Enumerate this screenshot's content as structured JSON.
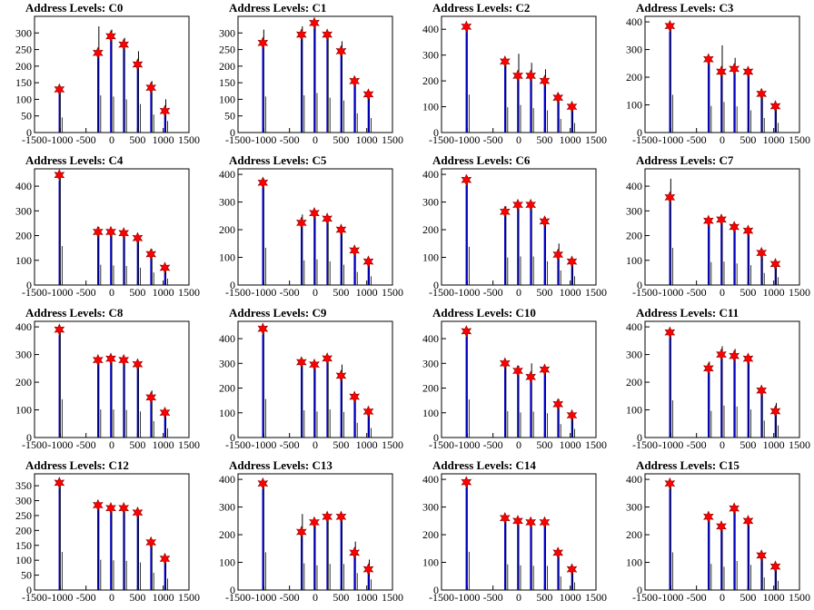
{
  "chart_data": [
    {
      "type": "bar",
      "title": "Address Levels: C0",
      "xlim": [
        -1500,
        1500
      ],
      "ylim": [
        0,
        350
      ],
      "xticks": [
        -1500,
        -1000,
        -500,
        0,
        500,
        1000,
        1500
      ],
      "yticks": [
        0,
        50,
        100,
        150,
        200,
        250,
        300
      ],
      "peaks_x": [
        -1000,
        -250,
        0,
        250,
        520,
        780,
        1050
      ],
      "peak_values": [
        130,
        240,
        290,
        265,
        205,
        135,
        65
      ],
      "bar_heights": [
        130,
        320,
        310,
        285,
        245,
        155,
        100
      ]
    },
    {
      "type": "bar",
      "title": "Address Levels: C1",
      "xlim": [
        -1500,
        1500
      ],
      "ylim": [
        0,
        350
      ],
      "xticks": [
        -1500,
        -1000,
        -500,
        0,
        500,
        1000,
        1500
      ],
      "yticks": [
        0,
        50,
        100,
        150,
        200,
        250,
        300
      ],
      "peaks_x": [
        -1000,
        -250,
        0,
        250,
        520,
        780,
        1050
      ],
      "peak_values": [
        270,
        295,
        330,
        295,
        245,
        155,
        115
      ],
      "bar_heights": [
        310,
        320,
        340,
        300,
        275,
        165,
        125
      ]
    },
    {
      "type": "bar",
      "title": "Address Levels: C2",
      "xlim": [
        -1500,
        1500
      ],
      "ylim": [
        0,
        450
      ],
      "xticks": [
        -1500,
        -1000,
        -500,
        0,
        500,
        1000,
        1500
      ],
      "yticks": [
        0,
        100,
        200,
        300,
        400
      ],
      "peaks_x": [
        -1000,
        -250,
        0,
        250,
        520,
        780,
        1050
      ],
      "peak_values": [
        410,
        275,
        220,
        220,
        200,
        135,
        100
      ],
      "bar_heights": [
        420,
        280,
        305,
        270,
        245,
        150,
        105
      ]
    },
    {
      "type": "bar",
      "title": "Address Levels: C3",
      "xlim": [
        -1500,
        1500
      ],
      "ylim": [
        0,
        420
      ],
      "xticks": [
        -1500,
        -1000,
        -500,
        0,
        500,
        1000,
        1500
      ],
      "yticks": [
        0,
        100,
        200,
        300,
        400
      ],
      "peaks_x": [
        -1000,
        -250,
        0,
        250,
        520,
        780,
        1050
      ],
      "peak_values": [
        385,
        265,
        220,
        230,
        220,
        140,
        95
      ],
      "bar_heights": [
        390,
        275,
        315,
        270,
        230,
        150,
        100
      ]
    },
    {
      "type": "bar",
      "title": "Address Levels: C4",
      "xlim": [
        -1500,
        1500
      ],
      "ylim": [
        0,
        470
      ],
      "xticks": [
        -1500,
        -1000,
        -500,
        0,
        500,
        1000,
        1500
      ],
      "yticks": [
        0,
        100,
        200,
        300,
        400
      ],
      "peaks_x": [
        -1000,
        -250,
        0,
        250,
        520,
        780,
        1050
      ],
      "peak_values": [
        445,
        215,
        215,
        210,
        190,
        125,
        70
      ],
      "bar_heights": [
        450,
        235,
        225,
        220,
        200,
        145,
        75
      ]
    },
    {
      "type": "bar",
      "title": "Address Levels: C5",
      "xlim": [
        -1500,
        1500
      ],
      "ylim": [
        0,
        420
      ],
      "xticks": [
        -1500,
        -1000,
        -500,
        0,
        500,
        1000,
        1500
      ],
      "yticks": [
        0,
        100,
        200,
        300,
        400
      ],
      "peaks_x": [
        -1000,
        -250,
        0,
        250,
        520,
        780,
        1050
      ],
      "peak_values": [
        370,
        225,
        260,
        240,
        200,
        125,
        85
      ],
      "bar_heights": [
        385,
        255,
        265,
        245,
        210,
        135,
        90
      ]
    },
    {
      "type": "bar",
      "title": "Address Levels: C6",
      "xlim": [
        -1500,
        1500
      ],
      "ylim": [
        0,
        420
      ],
      "xticks": [
        -1500,
        -1000,
        -500,
        0,
        500,
        1000,
        1500
      ],
      "yticks": [
        0,
        100,
        200,
        300,
        400
      ],
      "peaks_x": [
        -1000,
        -250,
        0,
        250,
        520,
        780,
        1050
      ],
      "peak_values": [
        380,
        265,
        290,
        290,
        230,
        110,
        85
      ],
      "bar_heights": [
        395,
        285,
        295,
        295,
        245,
        150,
        90
      ]
    },
    {
      "type": "bar",
      "title": "Address Levels: C7",
      "xlim": [
        -1500,
        1500
      ],
      "ylim": [
        0,
        470
      ],
      "xticks": [
        -1500,
        -1000,
        -500,
        0,
        500,
        1000,
        1500
      ],
      "yticks": [
        0,
        100,
        200,
        300,
        400
      ],
      "peaks_x": [
        -1000,
        -250,
        0,
        250,
        520,
        780,
        1050
      ],
      "peak_values": [
        355,
        260,
        265,
        235,
        220,
        130,
        85
      ],
      "bar_heights": [
        430,
        265,
        270,
        250,
        230,
        140,
        90
      ]
    },
    {
      "type": "bar",
      "title": "Address Levels: C8",
      "xlim": [
        -1500,
        1500
      ],
      "ylim": [
        0,
        420
      ],
      "xticks": [
        -1500,
        -1000,
        -500,
        0,
        500,
        1000,
        1500
      ],
      "yticks": [
        0,
        100,
        200,
        300,
        400
      ],
      "peaks_x": [
        -1000,
        -250,
        0,
        250,
        520,
        780,
        1050
      ],
      "peak_values": [
        390,
        280,
        285,
        280,
        265,
        145,
        90
      ],
      "bar_heights": [
        395,
        290,
        290,
        285,
        270,
        170,
        95
      ]
    },
    {
      "type": "bar",
      "title": "Address Levels: C9",
      "xlim": [
        -1500,
        1500
      ],
      "ylim": [
        0,
        470
      ],
      "xticks": [
        -1500,
        -1000,
        -500,
        0,
        500,
        1000,
        1500
      ],
      "yticks": [
        0,
        100,
        200,
        300,
        400
      ],
      "peaks_x": [
        -1000,
        -250,
        0,
        250,
        520,
        780,
        1050
      ],
      "peak_values": [
        440,
        305,
        295,
        320,
        250,
        165,
        105
      ],
      "bar_heights": [
        445,
        315,
        300,
        325,
        295,
        170,
        110
      ]
    },
    {
      "type": "bar",
      "title": "Address Levels: C10",
      "xlim": [
        -1500,
        1500
      ],
      "ylim": [
        0,
        470
      ],
      "xticks": [
        -1500,
        -1000,
        -500,
        0,
        500,
        1000,
        1500
      ],
      "yticks": [
        0,
        100,
        200,
        300,
        400
      ],
      "peaks_x": [
        -1000,
        -250,
        0,
        250,
        520,
        780,
        1050
      ],
      "peak_values": [
        430,
        300,
        270,
        245,
        275,
        135,
        90
      ],
      "bar_heights": [
        440,
        305,
        290,
        300,
        280,
        155,
        100
      ]
    },
    {
      "type": "bar",
      "title": "Address Levels: C11",
      "xlim": [
        -1500,
        1500
      ],
      "ylim": [
        0,
        420
      ],
      "xticks": [
        -1500,
        -1000,
        -500,
        0,
        500,
        1000,
        1500
      ],
      "yticks": [
        0,
        100,
        200,
        300,
        400
      ],
      "peaks_x": [
        -1000,
        -250,
        0,
        250,
        520,
        780,
        1050
      ],
      "peak_values": [
        380,
        250,
        300,
        295,
        285,
        170,
        95
      ],
      "bar_heights": [
        385,
        275,
        330,
        320,
        290,
        175,
        125
      ]
    },
    {
      "type": "bar",
      "title": "Address Levels: C12",
      "xlim": [
        -1500,
        1500
      ],
      "ylim": [
        0,
        390
      ],
      "xticks": [
        -1500,
        -1000,
        -500,
        0,
        500,
        1000,
        1500
      ],
      "yticks": [
        0,
        50,
        100,
        150,
        200,
        250,
        300,
        350
      ],
      "peaks_x": [
        -1000,
        -250,
        0,
        250,
        520,
        780,
        1050
      ],
      "peak_values": [
        360,
        285,
        275,
        275,
        260,
        160,
        105
      ],
      "bar_heights": [
        365,
        290,
        285,
        280,
        265,
        165,
        110
      ]
    },
    {
      "type": "bar",
      "title": "Address Levels: C13",
      "xlim": [
        -1500,
        1500
      ],
      "ylim": [
        0,
        420
      ],
      "xticks": [
        -1500,
        -1000,
        -500,
        0,
        500,
        1000,
        1500
      ],
      "yticks": [
        0,
        100,
        200,
        300,
        400
      ],
      "peaks_x": [
        -1000,
        -250,
        0,
        250,
        520,
        780,
        1050
      ],
      "peak_values": [
        385,
        210,
        245,
        265,
        265,
        135,
        75
      ],
      "bar_heights": [
        390,
        275,
        255,
        270,
        270,
        175,
        110
      ]
    },
    {
      "type": "bar",
      "title": "Address Levels: C14",
      "xlim": [
        -1500,
        1500
      ],
      "ylim": [
        0,
        420
      ],
      "xticks": [
        -1500,
        -1000,
        -500,
        0,
        500,
        1000,
        1500
      ],
      "yticks": [
        0,
        100,
        200,
        300,
        400
      ],
      "peaks_x": [
        -1000,
        -250,
        0,
        250,
        520,
        780,
        1050
      ],
      "peak_values": [
        390,
        260,
        250,
        245,
        245,
        135,
        75
      ],
      "bar_heights": [
        395,
        265,
        255,
        250,
        250,
        140,
        80
      ]
    },
    {
      "type": "bar",
      "title": "Address Levels: C15",
      "xlim": [
        -1500,
        1500
      ],
      "ylim": [
        0,
        420
      ],
      "xticks": [
        -1500,
        -1000,
        -500,
        0,
        500,
        1000,
        1500
      ],
      "yticks": [
        0,
        100,
        200,
        300,
        400
      ],
      "peaks_x": [
        -1000,
        -250,
        0,
        250,
        520,
        780,
        1050
      ],
      "peak_values": [
        385,
        265,
        230,
        295,
        250,
        125,
        85
      ],
      "bar_heights": [
        390,
        270,
        240,
        300,
        260,
        130,
        95
      ]
    }
  ],
  "colors": {
    "bar": "#0000cc",
    "peak_marker": "#ff0000",
    "marker_outline": "#880000",
    "axis": "#000000"
  }
}
